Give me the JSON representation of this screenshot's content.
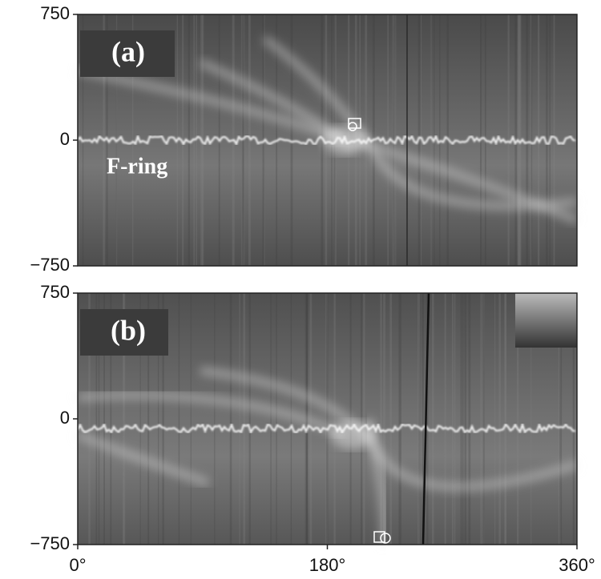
{
  "panels": [
    {
      "label": "(a)",
      "annotation": "F-ring",
      "ylim": [
        -750,
        750
      ],
      "yticks": [
        750,
        0,
        {
          "value": -750,
          "label": "−750"
        }
      ]
    },
    {
      "label": "(b)",
      "ylim": [
        -750,
        750
      ],
      "yticks": [
        750,
        0,
        {
          "value": -750,
          "label": "−750"
        }
      ]
    }
  ],
  "x_axis": {
    "xlim": [
      0,
      360
    ],
    "xticks": [
      {
        "value": 0,
        "label": "0°"
      },
      {
        "value": 180,
        "label": "180°"
      },
      {
        "value": 360,
        "label": "360°"
      }
    ]
  }
}
